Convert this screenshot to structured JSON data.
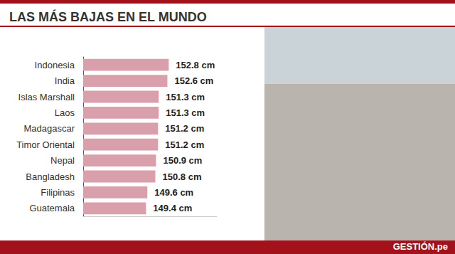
{
  "chart_data": {
    "type": "bar",
    "title": "LAS MÁS BAJAS EN EL MUNDO",
    "orientation": "horizontal",
    "categories": [
      "Indonesia",
      "India",
      "Islas Marshall",
      "Laos",
      "Madagascar",
      "Timor Oriental",
      "Nepal",
      "Bangladesh",
      "Filipinas",
      "Guatemala"
    ],
    "values": [
      152.8,
      152.6,
      151.3,
      151.3,
      151.2,
      151.2,
      150.9,
      150.8,
      149.6,
      149.4
    ],
    "value_labels": [
      "152.8 cm",
      "152.6 cm",
      "151.3 cm",
      "151.3 cm",
      "151.2 cm",
      "151.2 cm",
      "150.9 cm",
      "150.8 cm",
      "149.6 cm",
      "149.4 cm"
    ],
    "data_labels": true,
    "color": "#d9a0ab",
    "xlim": [
      140,
      160
    ],
    "tick_labels": "y",
    "grid": false,
    "annotations": [
      "GESTIÓN.pe"
    ]
  }
}
